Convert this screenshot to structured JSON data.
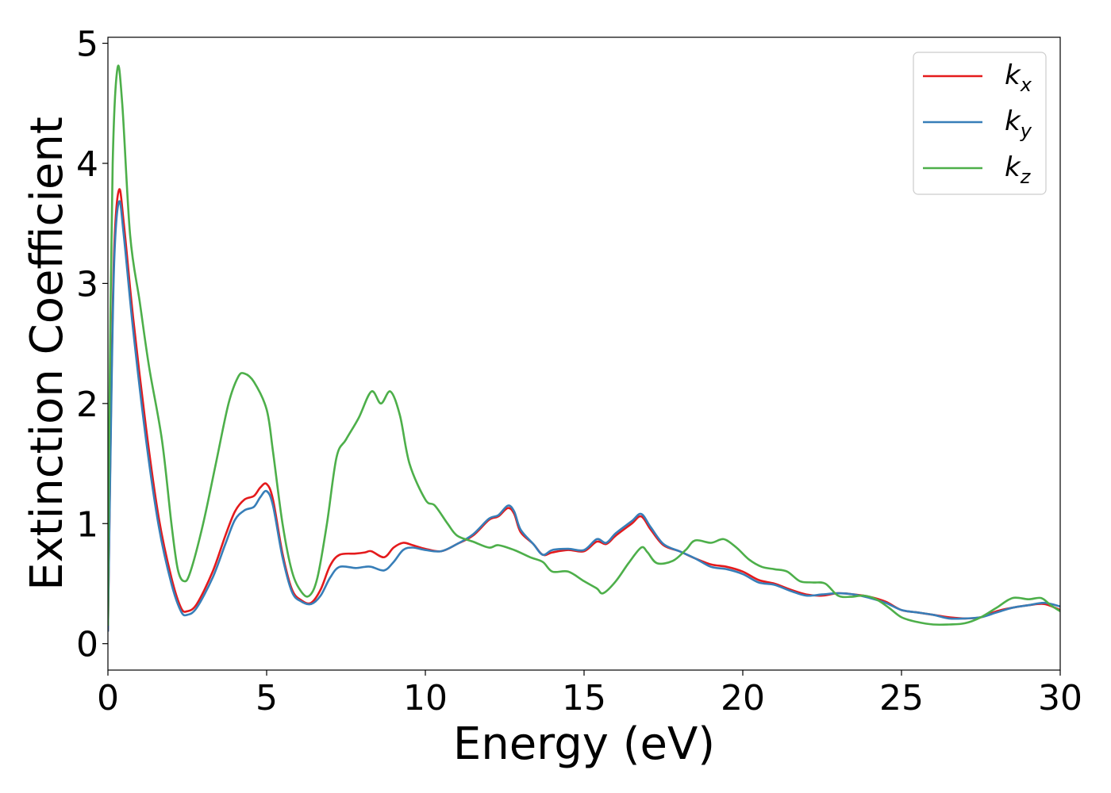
{
  "chart_data": {
    "type": "line",
    "title": "",
    "xlabel": "Energy (eV)",
    "ylabel": "Extinction Coefficient",
    "xlim": [
      0,
      30
    ],
    "ylim": [
      -0.22,
      5.05
    ],
    "xticks": [
      0,
      5,
      10,
      15,
      20,
      25,
      30
    ],
    "yticks": [
      0,
      1,
      2,
      3,
      4,
      5
    ],
    "grid": false,
    "legend_position": "top-right",
    "series": [
      {
        "name": "k",
        "subscript": "x",
        "color": "#e41a1c",
        "points": [
          [
            0,
            0.1
          ],
          [
            0.1,
            2.0
          ],
          [
            0.2,
            3.3
          ],
          [
            0.35,
            3.78
          ],
          [
            0.5,
            3.5
          ],
          [
            0.8,
            2.7
          ],
          [
            1.2,
            1.8
          ],
          [
            1.6,
            1.05
          ],
          [
            2.0,
            0.55
          ],
          [
            2.3,
            0.3
          ],
          [
            2.5,
            0.27
          ],
          [
            2.8,
            0.33
          ],
          [
            3.3,
            0.6
          ],
          [
            3.7,
            0.9
          ],
          [
            4.0,
            1.1
          ],
          [
            4.3,
            1.2
          ],
          [
            4.6,
            1.23
          ],
          [
            4.8,
            1.3
          ],
          [
            5.0,
            1.33
          ],
          [
            5.2,
            1.2
          ],
          [
            5.5,
            0.75
          ],
          [
            5.8,
            0.45
          ],
          [
            6.1,
            0.36
          ],
          [
            6.4,
            0.34
          ],
          [
            6.7,
            0.45
          ],
          [
            7.0,
            0.65
          ],
          [
            7.3,
            0.74
          ],
          [
            7.8,
            0.75
          ],
          [
            8.1,
            0.76
          ],
          [
            8.3,
            0.77
          ],
          [
            8.7,
            0.72
          ],
          [
            9.0,
            0.8
          ],
          [
            9.3,
            0.84
          ],
          [
            9.6,
            0.82
          ],
          [
            10.0,
            0.79
          ],
          [
            10.5,
            0.77
          ],
          [
            11.0,
            0.83
          ],
          [
            11.5,
            0.9
          ],
          [
            12.0,
            1.03
          ],
          [
            12.3,
            1.06
          ],
          [
            12.6,
            1.13
          ],
          [
            12.8,
            1.08
          ],
          [
            13.0,
            0.93
          ],
          [
            13.4,
            0.83
          ],
          [
            13.7,
            0.74
          ],
          [
            14.0,
            0.76
          ],
          [
            14.5,
            0.78
          ],
          [
            15.0,
            0.77
          ],
          [
            15.4,
            0.85
          ],
          [
            15.7,
            0.83
          ],
          [
            16.0,
            0.9
          ],
          [
            16.5,
            1.0
          ],
          [
            16.8,
            1.06
          ],
          [
            17.1,
            0.95
          ],
          [
            17.5,
            0.82
          ],
          [
            18.0,
            0.77
          ],
          [
            18.5,
            0.71
          ],
          [
            19.0,
            0.66
          ],
          [
            19.5,
            0.64
          ],
          [
            20.0,
            0.6
          ],
          [
            20.5,
            0.53
          ],
          [
            21.0,
            0.5
          ],
          [
            21.5,
            0.45
          ],
          [
            22.0,
            0.41
          ],
          [
            22.5,
            0.4
          ],
          [
            23.0,
            0.42
          ],
          [
            23.5,
            0.41
          ],
          [
            24.0,
            0.39
          ],
          [
            24.5,
            0.35
          ],
          [
            25.0,
            0.28
          ],
          [
            25.5,
            0.26
          ],
          [
            26.0,
            0.24
          ],
          [
            26.5,
            0.22
          ],
          [
            27.0,
            0.21
          ],
          [
            27.5,
            0.22
          ],
          [
            28.0,
            0.27
          ],
          [
            28.5,
            0.3
          ],
          [
            29.0,
            0.32
          ],
          [
            29.5,
            0.33
          ],
          [
            30.0,
            0.28
          ]
        ]
      },
      {
        "name": "k",
        "subscript": "y",
        "color": "#377eb8",
        "points": [
          [
            0,
            0.1
          ],
          [
            0.1,
            1.9
          ],
          [
            0.2,
            3.2
          ],
          [
            0.35,
            3.68
          ],
          [
            0.5,
            3.4
          ],
          [
            0.8,
            2.6
          ],
          [
            1.2,
            1.7
          ],
          [
            1.6,
            0.98
          ],
          [
            2.0,
            0.5
          ],
          [
            2.3,
            0.27
          ],
          [
            2.5,
            0.24
          ],
          [
            2.8,
            0.3
          ],
          [
            3.3,
            0.55
          ],
          [
            3.7,
            0.83
          ],
          [
            4.0,
            1.03
          ],
          [
            4.3,
            1.11
          ],
          [
            4.6,
            1.14
          ],
          [
            4.8,
            1.22
          ],
          [
            5.0,
            1.27
          ],
          [
            5.2,
            1.15
          ],
          [
            5.5,
            0.72
          ],
          [
            5.8,
            0.43
          ],
          [
            6.1,
            0.35
          ],
          [
            6.4,
            0.33
          ],
          [
            6.7,
            0.4
          ],
          [
            7.0,
            0.55
          ],
          [
            7.3,
            0.64
          ],
          [
            7.8,
            0.63
          ],
          [
            8.1,
            0.64
          ],
          [
            8.3,
            0.64
          ],
          [
            8.7,
            0.61
          ],
          [
            9.0,
            0.68
          ],
          [
            9.3,
            0.78
          ],
          [
            9.6,
            0.8
          ],
          [
            10.0,
            0.78
          ],
          [
            10.5,
            0.77
          ],
          [
            11.0,
            0.83
          ],
          [
            11.5,
            0.91
          ],
          [
            12.0,
            1.04
          ],
          [
            12.3,
            1.07
          ],
          [
            12.6,
            1.15
          ],
          [
            12.8,
            1.1
          ],
          [
            13.0,
            0.95
          ],
          [
            13.4,
            0.83
          ],
          [
            13.7,
            0.74
          ],
          [
            14.0,
            0.78
          ],
          [
            14.5,
            0.79
          ],
          [
            15.0,
            0.78
          ],
          [
            15.4,
            0.87
          ],
          [
            15.7,
            0.84
          ],
          [
            16.0,
            0.92
          ],
          [
            16.5,
            1.02
          ],
          [
            16.8,
            1.08
          ],
          [
            17.1,
            0.97
          ],
          [
            17.5,
            0.83
          ],
          [
            18.0,
            0.77
          ],
          [
            18.5,
            0.71
          ],
          [
            19.0,
            0.64
          ],
          [
            19.5,
            0.62
          ],
          [
            20.0,
            0.58
          ],
          [
            20.5,
            0.51
          ],
          [
            21.0,
            0.49
          ],
          [
            21.5,
            0.44
          ],
          [
            22.0,
            0.4
          ],
          [
            22.5,
            0.41
          ],
          [
            23.0,
            0.42
          ],
          [
            23.5,
            0.41
          ],
          [
            24.0,
            0.38
          ],
          [
            24.5,
            0.34
          ],
          [
            25.0,
            0.28
          ],
          [
            25.5,
            0.26
          ],
          [
            26.0,
            0.24
          ],
          [
            26.5,
            0.21
          ],
          [
            27.0,
            0.21
          ],
          [
            27.5,
            0.22
          ],
          [
            28.0,
            0.26
          ],
          [
            28.5,
            0.3
          ],
          [
            29.0,
            0.32
          ],
          [
            29.5,
            0.34
          ],
          [
            30.0,
            0.31
          ]
        ]
      },
      {
        "name": "k",
        "subscript": "z",
        "color": "#4daf4a",
        "points": [
          [
            0,
            0.15
          ],
          [
            0.05,
            2.0
          ],
          [
            0.15,
            4.0
          ],
          [
            0.3,
            4.79
          ],
          [
            0.45,
            4.5
          ],
          [
            0.7,
            3.4
          ],
          [
            1.0,
            2.85
          ],
          [
            1.3,
            2.3
          ],
          [
            1.7,
            1.7
          ],
          [
            2.0,
            1.0
          ],
          [
            2.2,
            0.62
          ],
          [
            2.4,
            0.52
          ],
          [
            2.6,
            0.6
          ],
          [
            3.0,
            1.0
          ],
          [
            3.4,
            1.5
          ],
          [
            3.8,
            2.0
          ],
          [
            4.1,
            2.22
          ],
          [
            4.3,
            2.25
          ],
          [
            4.6,
            2.18
          ],
          [
            5.0,
            1.95
          ],
          [
            5.2,
            1.6
          ],
          [
            5.5,
            1.0
          ],
          [
            5.8,
            0.6
          ],
          [
            6.1,
            0.43
          ],
          [
            6.35,
            0.4
          ],
          [
            6.6,
            0.55
          ],
          [
            6.9,
            1.0
          ],
          [
            7.2,
            1.55
          ],
          [
            7.5,
            1.7
          ],
          [
            7.9,
            1.88
          ],
          [
            8.3,
            2.1
          ],
          [
            8.6,
            2.0
          ],
          [
            8.9,
            2.1
          ],
          [
            9.2,
            1.9
          ],
          [
            9.5,
            1.5
          ],
          [
            10.0,
            1.2
          ],
          [
            10.3,
            1.15
          ],
          [
            10.7,
            1.0
          ],
          [
            11.0,
            0.9
          ],
          [
            11.5,
            0.85
          ],
          [
            12.0,
            0.8
          ],
          [
            12.3,
            0.82
          ],
          [
            12.8,
            0.78
          ],
          [
            13.3,
            0.72
          ],
          [
            13.7,
            0.68
          ],
          [
            14.0,
            0.6
          ],
          [
            14.5,
            0.6
          ],
          [
            15.0,
            0.52
          ],
          [
            15.4,
            0.46
          ],
          [
            15.6,
            0.42
          ],
          [
            16.0,
            0.52
          ],
          [
            16.4,
            0.67
          ],
          [
            16.8,
            0.8
          ],
          [
            17.0,
            0.76
          ],
          [
            17.3,
            0.67
          ],
          [
            17.8,
            0.69
          ],
          [
            18.2,
            0.78
          ],
          [
            18.5,
            0.86
          ],
          [
            19.0,
            0.84
          ],
          [
            19.4,
            0.87
          ],
          [
            19.8,
            0.8
          ],
          [
            20.2,
            0.7
          ],
          [
            20.6,
            0.64
          ],
          [
            21.0,
            0.62
          ],
          [
            21.4,
            0.6
          ],
          [
            21.8,
            0.52
          ],
          [
            22.2,
            0.51
          ],
          [
            22.6,
            0.5
          ],
          [
            23.0,
            0.4
          ],
          [
            23.4,
            0.39
          ],
          [
            23.8,
            0.4
          ],
          [
            24.2,
            0.37
          ],
          [
            24.6,
            0.3
          ],
          [
            25.0,
            0.22
          ],
          [
            25.5,
            0.18
          ],
          [
            26.0,
            0.16
          ],
          [
            26.5,
            0.16
          ],
          [
            27.0,
            0.17
          ],
          [
            27.5,
            0.22
          ],
          [
            28.0,
            0.3
          ],
          [
            28.5,
            0.38
          ],
          [
            29.0,
            0.37
          ],
          [
            29.4,
            0.38
          ],
          [
            29.7,
            0.32
          ],
          [
            30.0,
            0.27
          ]
        ]
      }
    ]
  }
}
